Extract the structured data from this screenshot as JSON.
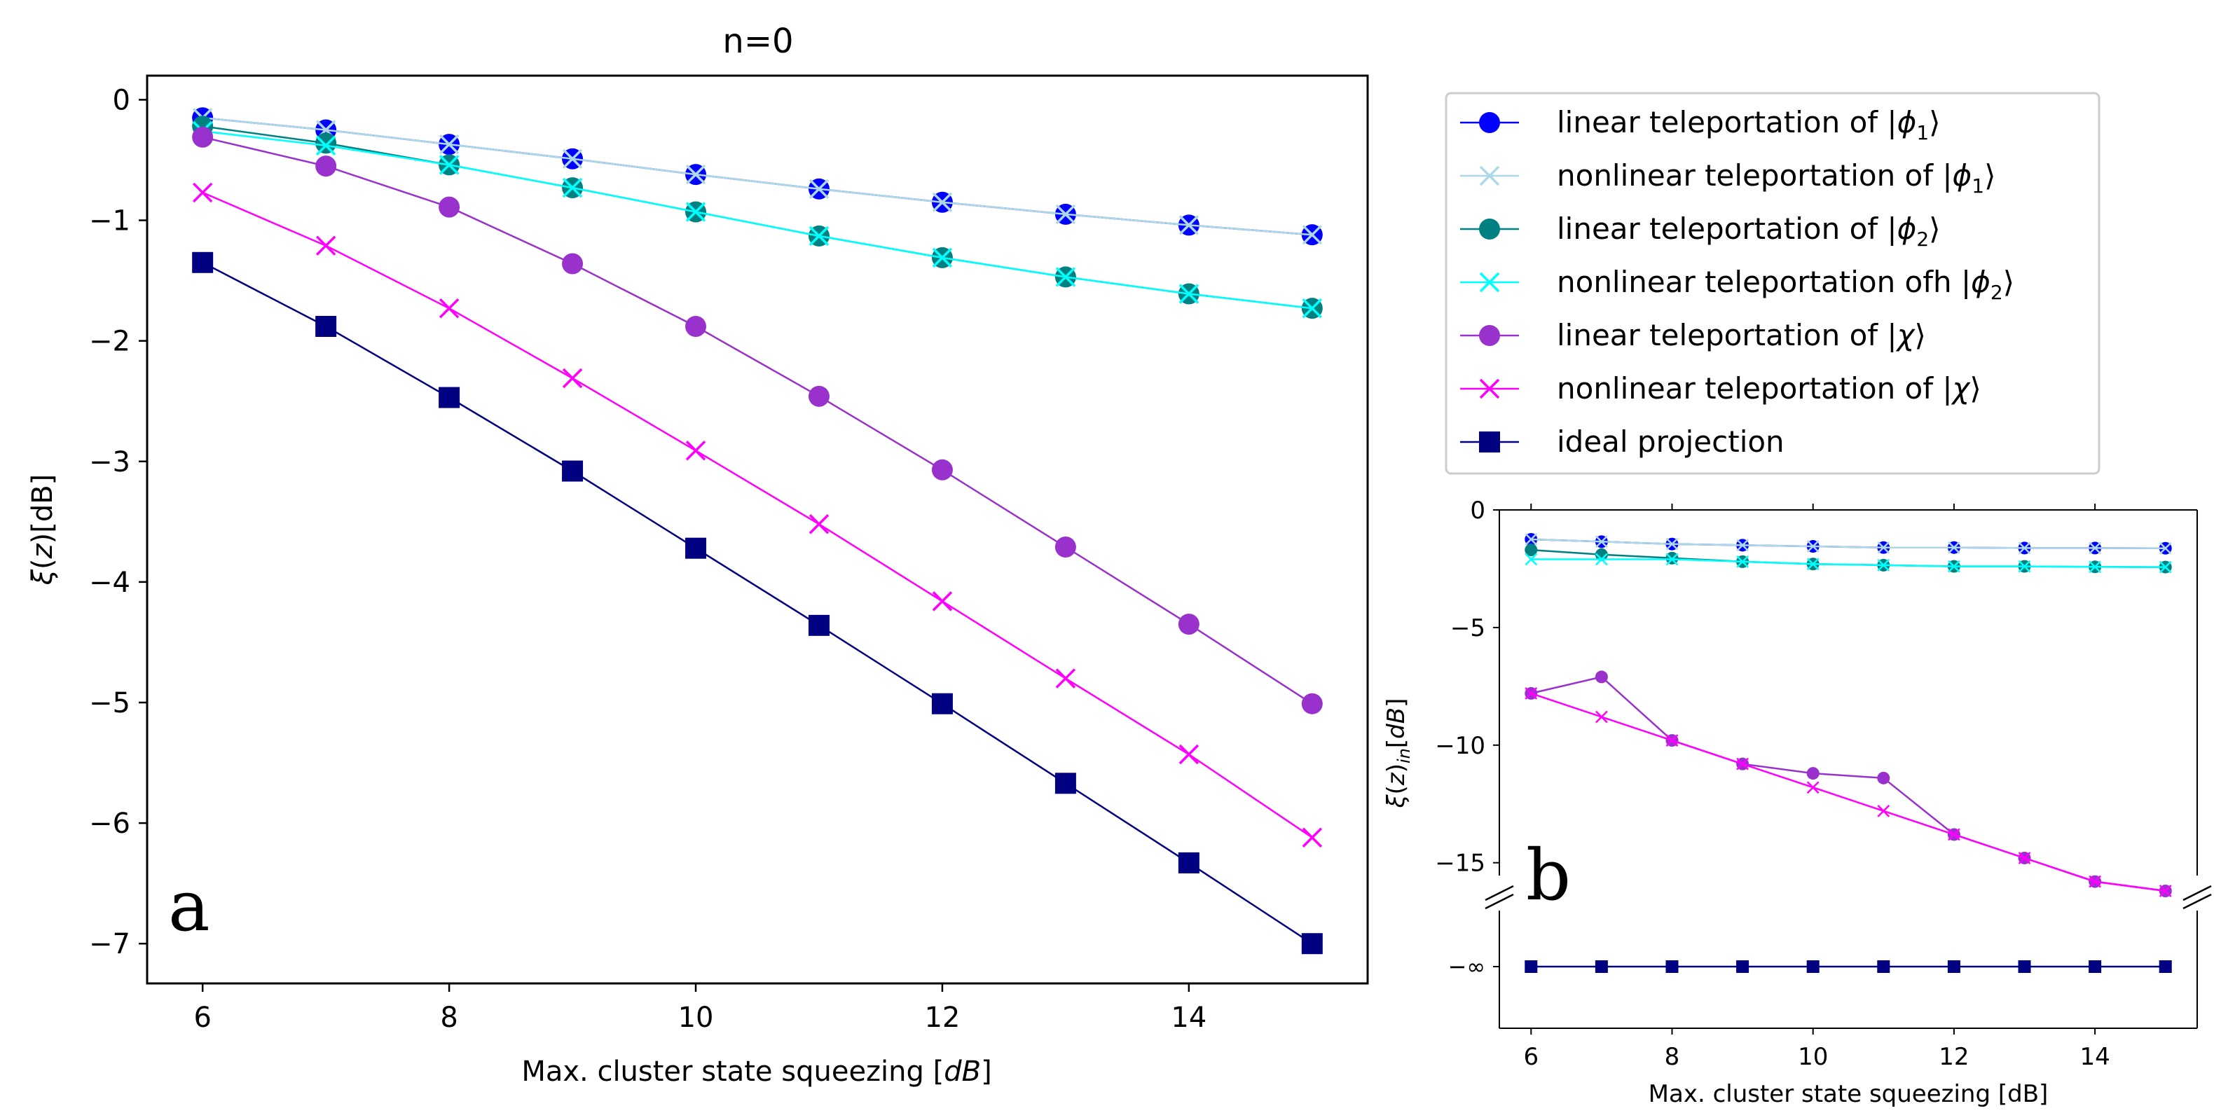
{
  "chart_data": [
    {
      "type": "line",
      "panel_label": "a",
      "title": "n=0",
      "xlabel": "Max. cluster state squeezing [dB]",
      "xlabel_parts": [
        "Max. cluster state squeezing [",
        "dB",
        "]"
      ],
      "ylabel_parts": [
        "ξ",
        "(",
        "z",
        ")[dB]"
      ],
      "xlim": [
        5.55,
        15.45
      ],
      "ylim": [
        -7.33,
        0.2
      ],
      "xticks": [
        6,
        8,
        10,
        12,
        14
      ],
      "xtick_labels": [
        "6",
        "8",
        "10",
        "12",
        "14"
      ],
      "yticks": [
        0,
        -1,
        -2,
        -3,
        -4,
        -5,
        -6,
        -7
      ],
      "ytick_labels": [
        "0",
        "−1",
        "−2",
        "−3",
        "−4",
        "−5",
        "−6",
        "−7"
      ],
      "x": [
        6,
        7,
        8,
        9,
        10,
        11,
        12,
        13,
        14,
        15
      ],
      "series": [
        {
          "name": "linear teleportation of |φ1⟩",
          "color": "#0000ff",
          "marker": "circle",
          "values": [
            -0.15,
            -0.25,
            -0.37,
            -0.49,
            -0.62,
            -0.74,
            -0.85,
            -0.95,
            -1.04,
            -1.12
          ]
        },
        {
          "name": "nonlinear teleportation of |φ1⟩",
          "color": "#add8e6",
          "marker": "x",
          "values": [
            -0.15,
            -0.25,
            -0.37,
            -0.49,
            -0.62,
            -0.74,
            -0.85,
            -0.95,
            -1.04,
            -1.12
          ]
        },
        {
          "name": "linear teleportation of |φ2⟩",
          "color": "#008080",
          "marker": "circle",
          "values": [
            -0.22,
            -0.36,
            -0.54,
            -0.73,
            -0.93,
            -1.13,
            -1.31,
            -1.47,
            -1.61,
            -1.73
          ]
        },
        {
          "name": "nonlinear teleportation ofh |φ2⟩",
          "color": "#00ffff",
          "marker": "x",
          "values": [
            -0.26,
            -0.38,
            -0.54,
            -0.73,
            -0.93,
            -1.13,
            -1.31,
            -1.47,
            -1.61,
            -1.73
          ]
        },
        {
          "name": "linear teleportation of |χ⟩",
          "color": "#9932cc",
          "marker": "circle",
          "values": [
            -0.31,
            -0.55,
            -0.89,
            -1.36,
            -1.88,
            -2.46,
            -3.07,
            -3.71,
            -4.35,
            -5.01
          ]
        },
        {
          "name": "nonlinear teleportation of |χ⟩",
          "color": "#ff00ff",
          "marker": "x",
          "values": [
            -0.77,
            -1.21,
            -1.73,
            -2.31,
            -2.91,
            -3.52,
            -4.16,
            -4.8,
            -5.43,
            -6.12
          ]
        },
        {
          "name": "ideal projection",
          "color": "#000080",
          "marker": "square",
          "values": [
            -1.35,
            -1.88,
            -2.47,
            -3.08,
            -3.72,
            -4.36,
            -5.01,
            -5.67,
            -6.33,
            -7.0
          ]
        }
      ],
      "legend": {
        "placement": "outside-right",
        "entries": [
          {
            "prefix": "linear teleportation of |",
            "sym": "ϕ",
            "sub": "1",
            "suffix": "⟩"
          },
          {
            "prefix": "nonlinear teleportation of |",
            "sym": "ϕ",
            "sub": "1",
            "suffix": "⟩"
          },
          {
            "prefix": "linear teleportation of |",
            "sym": "ϕ",
            "sub": "2",
            "suffix": "⟩"
          },
          {
            "prefix": "nonlinear teleportation ofh |",
            "sym": "ϕ",
            "sub": "2",
            "suffix": "⟩"
          },
          {
            "prefix": "linear teleportation of |",
            "sym": "χ",
            "sub": "",
            "suffix": "⟩"
          },
          {
            "prefix": "nonlinear teleportation of |",
            "sym": "χ",
            "sub": "",
            "suffix": "⟩"
          },
          {
            "prefix": "ideal projection",
            "sym": "",
            "sub": "",
            "suffix": ""
          }
        ]
      }
    },
    {
      "type": "line",
      "panel_label": "b",
      "title": "",
      "xlabel": "Max. cluster state squeezing [dB]",
      "ylabel_parts": [
        "ξ",
        "(",
        "z",
        ")",
        "in",
        "[",
        "dB",
        "]"
      ],
      "broken_y_axis": true,
      "xlim": [
        5.55,
        15.45
      ],
      "ylim_upper": [
        -16.2,
        0
      ],
      "ylim_lower_label": "−∞",
      "xticks": [
        6,
        8,
        10,
        12,
        14
      ],
      "xtick_labels": [
        "6",
        "8",
        "10",
        "12",
        "14"
      ],
      "yticks": [
        0,
        -5,
        -10,
        -15
      ],
      "ytick_labels": [
        "0",
        "−5",
        "−10",
        "−15"
      ],
      "x": [
        6,
        7,
        8,
        9,
        10,
        11,
        12,
        13,
        14,
        15
      ],
      "series": [
        {
          "name": "linear teleportation of |φ1⟩",
          "color": "#0000ff",
          "marker": "circle",
          "values": [
            -1.25,
            -1.35,
            -1.45,
            -1.5,
            -1.55,
            -1.6,
            -1.6,
            -1.62,
            -1.62,
            -1.63
          ]
        },
        {
          "name": "nonlinear teleportation of |φ1⟩",
          "color": "#add8e6",
          "marker": "x",
          "values": [
            -1.25,
            -1.35,
            -1.45,
            -1.5,
            -1.55,
            -1.6,
            -1.6,
            -1.62,
            -1.62,
            -1.63
          ]
        },
        {
          "name": "linear teleportation of |φ2⟩",
          "color": "#008080",
          "marker": "circle",
          "values": [
            -1.7,
            -1.9,
            -2.05,
            -2.2,
            -2.3,
            -2.35,
            -2.4,
            -2.4,
            -2.42,
            -2.43
          ]
        },
        {
          "name": "nonlinear teleportation ofh |φ2⟩",
          "color": "#00ffff",
          "marker": "x",
          "values": [
            -2.1,
            -2.1,
            -2.1,
            -2.2,
            -2.3,
            -2.35,
            -2.4,
            -2.4,
            -2.42,
            -2.43
          ]
        },
        {
          "name": "linear teleportation of |χ⟩",
          "color": "#9932cc",
          "marker": "circle",
          "values": [
            -7.8,
            -7.1,
            -9.8,
            -10.8,
            -11.2,
            -11.4,
            -13.8,
            -14.8,
            -15.8,
            -16.2
          ]
        },
        {
          "name": "nonlinear teleportation of |χ⟩",
          "color": "#ff00ff",
          "marker": "x",
          "values": [
            -7.8,
            -8.8,
            -9.8,
            -10.8,
            -11.8,
            -12.8,
            -13.8,
            -14.8,
            -15.8,
            -16.2
          ]
        },
        {
          "name": "ideal projection",
          "color": "#000080",
          "marker": "square",
          "values": [
            "-inf",
            "-inf",
            "-inf",
            "-inf",
            "-inf",
            "-inf",
            "-inf",
            "-inf",
            "-inf",
            "-inf"
          ]
        }
      ]
    }
  ]
}
